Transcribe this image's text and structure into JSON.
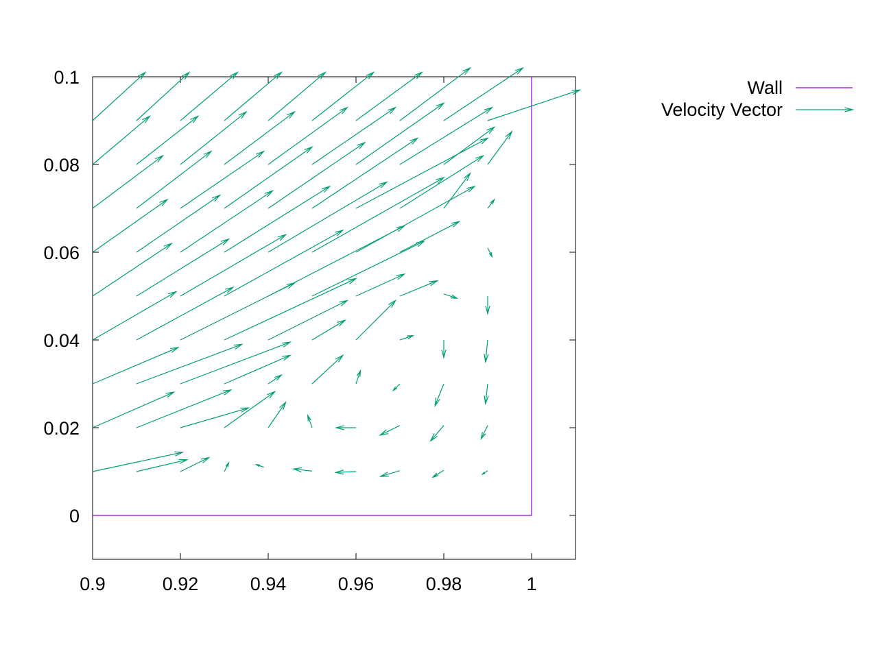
{
  "chart_data": {
    "type": "vector-field",
    "x_ticks": [
      "0.9",
      "0.92",
      "0.94",
      "0.96",
      "0.98",
      "1"
    ],
    "x_tick_values": [
      0.9,
      0.92,
      0.94,
      0.96,
      0.98,
      1.0
    ],
    "y_ticks": [
      "0",
      "0.02",
      "0.04",
      "0.06",
      "0.08",
      "0.1"
    ],
    "y_tick_values": [
      0,
      0.02,
      0.04,
      0.06,
      0.08,
      0.1
    ],
    "xlim": [
      0.9,
      1.01
    ],
    "ylim": [
      -0.01,
      0.1
    ],
    "grid": false,
    "legend_position": "top-right outside",
    "legend": [
      {
        "label": "Wall",
        "style": "line",
        "color": "#9400d3"
      },
      {
        "label": "Velocity Vector",
        "style": "arrow",
        "color": "#009e73"
      }
    ],
    "series": [
      {
        "name": "Wall",
        "color": "#9400d3",
        "points": [
          [
            0.9,
            0
          ],
          [
            1.0,
            0
          ],
          [
            1.0,
            0.1
          ]
        ]
      },
      {
        "name": "Velocity Vector",
        "color": "#009e73",
        "vectors": [
          {
            "x": 0.9,
            "y": 0.09,
            "dx": 0.012,
            "dy": 0.011
          },
          {
            "x": 0.91,
            "y": 0.09,
            "dx": 0.012,
            "dy": 0.011
          },
          {
            "x": 0.92,
            "y": 0.09,
            "dx": 0.013,
            "dy": 0.011
          },
          {
            "x": 0.93,
            "y": 0.09,
            "dx": 0.013,
            "dy": 0.011
          },
          {
            "x": 0.94,
            "y": 0.09,
            "dx": 0.013,
            "dy": 0.011
          },
          {
            "x": 0.95,
            "y": 0.09,
            "dx": 0.014,
            "dy": 0.011
          },
          {
            "x": 0.96,
            "y": 0.09,
            "dx": 0.015,
            "dy": 0.011
          },
          {
            "x": 0.97,
            "y": 0.09,
            "dx": 0.016,
            "dy": 0.012
          },
          {
            "x": 0.98,
            "y": 0.09,
            "dx": 0.018,
            "dy": 0.012
          },
          {
            "x": 0.99,
            "y": 0.09,
            "dx": 0.021,
            "dy": 0.007
          },
          {
            "x": 0.9,
            "y": 0.08,
            "dx": 0.013,
            "dy": 0.011
          },
          {
            "x": 0.91,
            "y": 0.08,
            "dx": 0.014,
            "dy": 0.011
          },
          {
            "x": 0.92,
            "y": 0.08,
            "dx": 0.015,
            "dy": 0.012
          },
          {
            "x": 0.93,
            "y": 0.08,
            "dx": 0.016,
            "dy": 0.012
          },
          {
            "x": 0.94,
            "y": 0.08,
            "dx": 0.018,
            "dy": 0.013
          },
          {
            "x": 0.95,
            "y": 0.08,
            "dx": 0.019,
            "dy": 0.013
          },
          {
            "x": 0.96,
            "y": 0.08,
            "dx": 0.02,
            "dy": 0.014
          },
          {
            "x": 0.97,
            "y": 0.08,
            "dx": 0.021,
            "dy": 0.013
          },
          {
            "x": 0.98,
            "y": 0.08,
            "dx": 0.0115,
            "dy": 0.0085
          },
          {
            "x": 0.99,
            "y": 0.08,
            "dx": 0.0055,
            "dy": 0.0075
          },
          {
            "x": 0.9,
            "y": 0.07,
            "dx": 0.016,
            "dy": 0.012
          },
          {
            "x": 0.91,
            "y": 0.07,
            "dx": 0.017,
            "dy": 0.013
          },
          {
            "x": 0.92,
            "y": 0.07,
            "dx": 0.019,
            "dy": 0.013
          },
          {
            "x": 0.93,
            "y": 0.07,
            "dx": 0.02,
            "dy": 0.014
          },
          {
            "x": 0.94,
            "y": 0.07,
            "dx": 0.022,
            "dy": 0.015
          },
          {
            "x": 0.95,
            "y": 0.07,
            "dx": 0.024,
            "dy": 0.016
          },
          {
            "x": 0.96,
            "y": 0.07,
            "dx": 0.03,
            "dy": 0.016
          },
          {
            "x": 0.97,
            "y": 0.07,
            "dx": 0.019,
            "dy": 0.012
          },
          {
            "x": 0.98,
            "y": 0.07,
            "dx": 0.006,
            "dy": 0.008
          },
          {
            "x": 0.99,
            "y": 0.07,
            "dx": 0.0015,
            "dy": 0.002
          },
          {
            "x": 0.9,
            "y": 0.06,
            "dx": 0.017,
            "dy": 0.012
          },
          {
            "x": 0.91,
            "y": 0.06,
            "dx": 0.019,
            "dy": 0.013
          },
          {
            "x": 0.92,
            "y": 0.06,
            "dx": 0.021,
            "dy": 0.014
          },
          {
            "x": 0.93,
            "y": 0.06,
            "dx": 0.024,
            "dy": 0.015
          },
          {
            "x": 0.94,
            "y": 0.06,
            "dx": 0.027,
            "dy": 0.016
          },
          {
            "x": 0.95,
            "y": 0.06,
            "dx": 0.03,
            "dy": 0.017
          },
          {
            "x": 0.96,
            "y": 0.06,
            "dx": 0.027,
            "dy": 0.015
          },
          {
            "x": 0.97,
            "y": 0.06,
            "dx": 0.0135,
            "dy": 0.007
          },
          {
            "x": 0.99,
            "y": 0.061,
            "dx": 0.001,
            "dy": -0.002
          },
          {
            "x": 0.9,
            "y": 0.05,
            "dx": 0.018,
            "dy": 0.012
          },
          {
            "x": 0.91,
            "y": 0.05,
            "dx": 0.021,
            "dy": 0.013
          },
          {
            "x": 0.92,
            "y": 0.05,
            "dx": 0.024,
            "dy": 0.014
          },
          {
            "x": 0.93,
            "y": 0.05,
            "dx": 0.027,
            "dy": 0.015
          },
          {
            "x": 0.94,
            "y": 0.05,
            "dx": 0.031,
            "dy": 0.016
          },
          {
            "x": 0.95,
            "y": 0.05,
            "dx": 0.0255,
            "dy": 0.0125
          },
          {
            "x": 0.96,
            "y": 0.05,
            "dx": 0.011,
            "dy": 0.005
          },
          {
            "x": 0.97,
            "y": 0.05,
            "dx": 0.0085,
            "dy": 0.0035
          },
          {
            "x": 0.98,
            "y": 0.0505,
            "dx": 0.003,
            "dy": -0.001
          },
          {
            "x": 0.99,
            "y": 0.05,
            "dx": 0.0,
            "dy": -0.004
          },
          {
            "x": 0.9,
            "y": 0.04,
            "dx": 0.019,
            "dy": 0.011
          },
          {
            "x": 0.91,
            "y": 0.04,
            "dx": 0.022,
            "dy": 0.012
          },
          {
            "x": 0.92,
            "y": 0.04,
            "dx": 0.026,
            "dy": 0.013
          },
          {
            "x": 0.93,
            "y": 0.04,
            "dx": 0.03,
            "dy": 0.014
          },
          {
            "x": 0.94,
            "y": 0.04,
            "dx": 0.018,
            "dy": 0.009
          },
          {
            "x": 0.95,
            "y": 0.04,
            "dx": 0.0075,
            "dy": 0.0045
          },
          {
            "x": 0.96,
            "y": 0.04,
            "dx": 0.009,
            "dy": 0.009
          },
          {
            "x": 0.97,
            "y": 0.04,
            "dx": 0.003,
            "dy": 0.001
          },
          {
            "x": 0.98,
            "y": 0.04,
            "dx": 0.0,
            "dy": -0.004
          },
          {
            "x": 0.99,
            "y": 0.04,
            "dx": -0.0005,
            "dy": -0.005
          },
          {
            "x": 0.9,
            "y": 0.03,
            "dx": 0.0195,
            "dy": 0.0083
          },
          {
            "x": 0.91,
            "y": 0.03,
            "dx": 0.024,
            "dy": 0.009
          },
          {
            "x": 0.92,
            "y": 0.03,
            "dx": 0.025,
            "dy": 0.0095
          },
          {
            "x": 0.93,
            "y": 0.03,
            "dx": 0.015,
            "dy": 0.0065
          },
          {
            "x": 0.94,
            "y": 0.03,
            "dx": 0.003,
            "dy": 0.002
          },
          {
            "x": 0.95,
            "y": 0.03,
            "dx": 0.007,
            "dy": 0.0065
          },
          {
            "x": 0.96,
            "y": 0.03,
            "dx": 0.001,
            "dy": 0.003
          },
          {
            "x": 0.97,
            "y": 0.03,
            "dx": -0.0015,
            "dy": -0.0015
          },
          {
            "x": 0.98,
            "y": 0.03,
            "dx": -0.002,
            "dy": -0.005
          },
          {
            "x": 0.99,
            "y": 0.03,
            "dx": -0.0005,
            "dy": -0.0045
          },
          {
            "x": 0.9,
            "y": 0.02,
            "dx": 0.0185,
            "dy": 0.0081
          },
          {
            "x": 0.91,
            "y": 0.02,
            "dx": 0.0215,
            "dy": 0.0086
          },
          {
            "x": 0.92,
            "y": 0.02,
            "dx": 0.0155,
            "dy": 0.0045
          },
          {
            "x": 0.93,
            "y": 0.02,
            "dx": 0.0115,
            "dy": 0.0082
          },
          {
            "x": 0.94,
            "y": 0.02,
            "dx": 0.004,
            "dy": 0.0058
          },
          {
            "x": 0.95,
            "y": 0.02,
            "dx": -0.001,
            "dy": 0.0028
          },
          {
            "x": 0.96,
            "y": 0.02,
            "dx": -0.0045,
            "dy": 0.0
          },
          {
            "x": 0.97,
            "y": 0.0205,
            "dx": -0.0045,
            "dy": -0.0022
          },
          {
            "x": 0.98,
            "y": 0.0205,
            "dx": -0.003,
            "dy": -0.0035
          },
          {
            "x": 0.99,
            "y": 0.0205,
            "dx": -0.0015,
            "dy": -0.003
          },
          {
            "x": 0.9,
            "y": 0.01,
            "dx": 0.0205,
            "dy": 0.0044
          },
          {
            "x": 0.91,
            "y": 0.01,
            "dx": 0.0115,
            "dy": 0.0027
          },
          {
            "x": 0.92,
            "y": 0.01,
            "dx": 0.0065,
            "dy": 0.0032
          },
          {
            "x": 0.93,
            "y": 0.01,
            "dx": 0.001,
            "dy": 0.002
          },
          {
            "x": 0.939,
            "y": 0.011,
            "dx": -0.0017,
            "dy": 0.0006
          },
          {
            "x": 0.95,
            "y": 0.0101,
            "dx": -0.0042,
            "dy": 0.0005
          },
          {
            "x": 0.96,
            "y": 0.01,
            "dx": -0.0046,
            "dy": -0.0002
          },
          {
            "x": 0.97,
            "y": 0.0102,
            "dx": -0.0044,
            "dy": -0.0013
          },
          {
            "x": 0.98,
            "y": 0.0103,
            "dx": -0.0025,
            "dy": -0.0016
          },
          {
            "x": 0.99,
            "y": 0.0102,
            "dx": -0.0012,
            "dy": -0.0008
          }
        ]
      }
    ]
  }
}
